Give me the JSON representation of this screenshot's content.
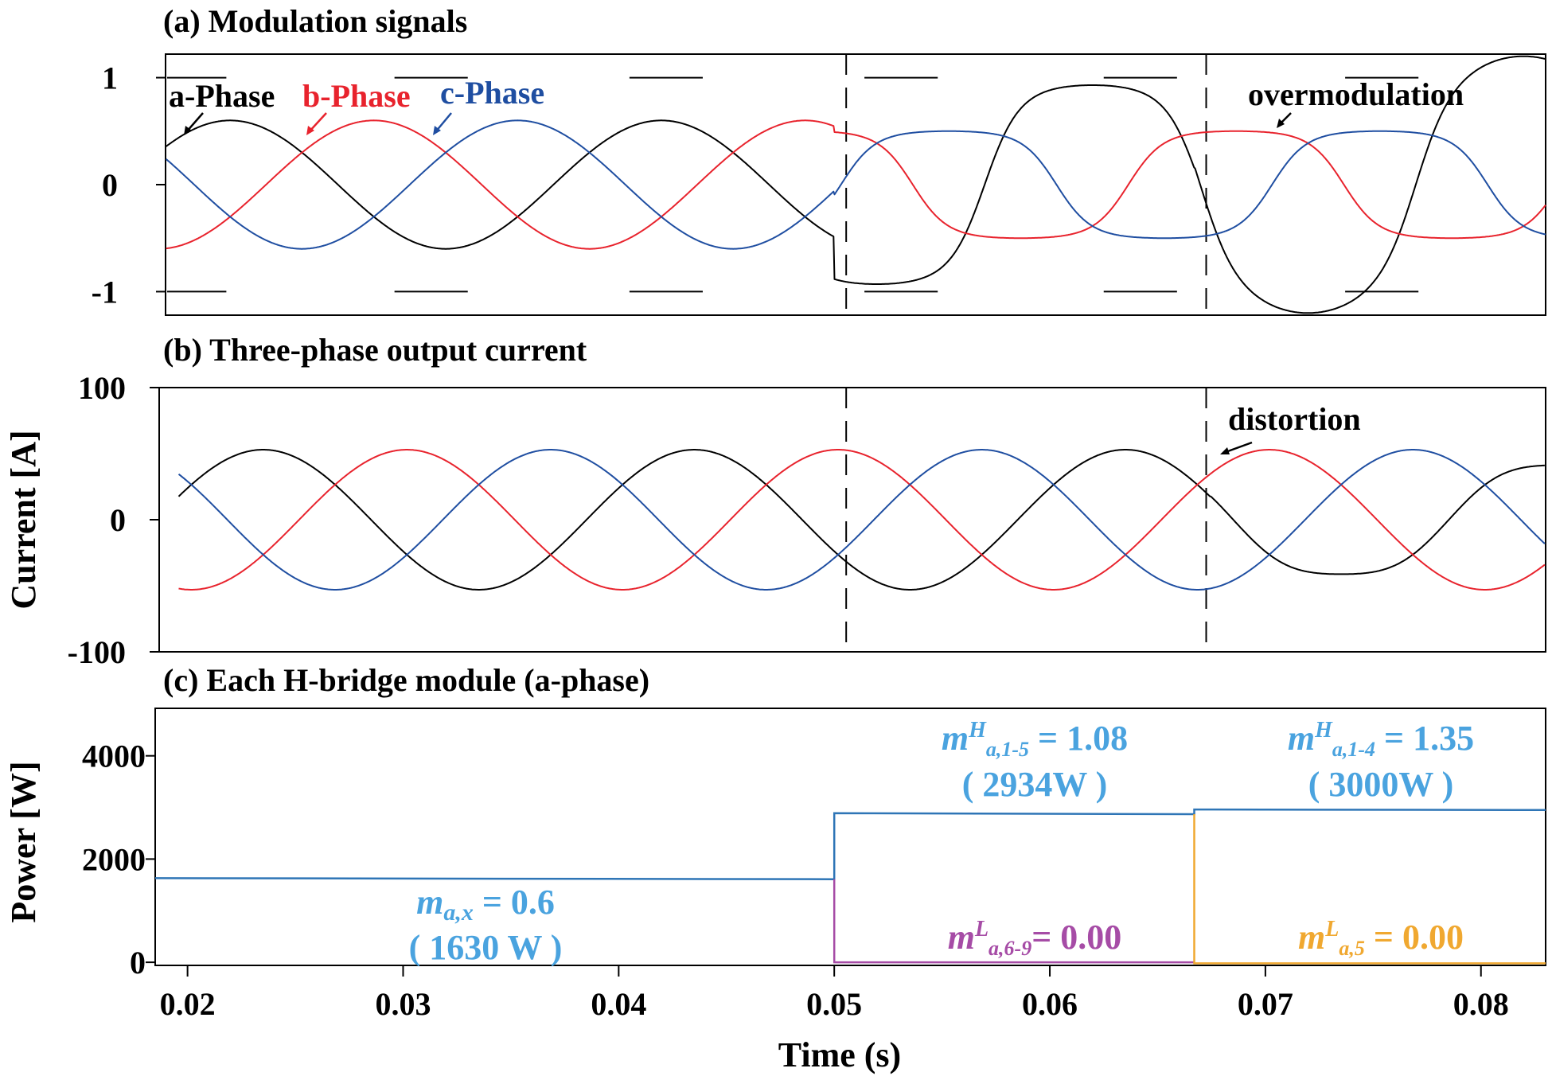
{
  "chart_data": [
    {
      "type": "line",
      "title": "(a) Modulation signals",
      "xlim": [
        0.0185,
        0.083
      ],
      "ylim": [
        -1.22,
        1.22
      ],
      "yticks": [
        1,
        0,
        -1
      ],
      "ytick_labels": [
        "1",
        "0",
        "-1"
      ],
      "carrier_levels": [
        1,
        -1
      ],
      "event_times": [
        0.05,
        0.0667
      ],
      "series": [
        {
          "name": "a-Phase",
          "color": "#000000"
        },
        {
          "name": "b-Phase",
          "color": "#e8232d"
        },
        {
          "name": "c-Phase",
          "color": "#1f4ea1"
        }
      ],
      "amplitudes": [
        0.6,
        0.93,
        1.2
      ],
      "annotations": [
        {
          "text": "overmodulation"
        }
      ]
    },
    {
      "type": "line",
      "title": "(b) Three-phase output current",
      "ylabel": "Current [A]",
      "xlim": [
        0.0185,
        0.083
      ],
      "ylim": [
        -100,
        100
      ],
      "yticks": [
        100,
        0,
        -100
      ],
      "ytick_labels": [
        "100",
        "0",
        "-100"
      ],
      "amplitude": 53,
      "event_times": [
        0.05,
        0.0667
      ],
      "series": [
        {
          "name": "a-Phase",
          "color": "#000000"
        },
        {
          "name": "b-Phase",
          "color": "#e8232d"
        },
        {
          "name": "c-Phase",
          "color": "#1f4ea1"
        }
      ],
      "annotations": [
        {
          "text": "distortion"
        }
      ]
    },
    {
      "type": "line",
      "title": "(c) Each H-bridge module (a-phase)",
      "ylabel": "Power [W]",
      "xlabel": "Time (s)",
      "xlim": [
        0.0185,
        0.083
      ],
      "ylim": [
        -60,
        4920
      ],
      "xticks": [
        0.02,
        0.03,
        0.04,
        0.05,
        0.06,
        0.07,
        0.08
      ],
      "xtick_labels": [
        "0.02",
        "0.03",
        "0.04",
        "0.05",
        "0.06",
        "0.07",
        "0.08"
      ],
      "yticks": [
        4000,
        2000,
        0
      ],
      "ytick_labels": [
        "4000",
        "2000",
        "0"
      ],
      "series": [
        {
          "color": "#2e75b6",
          "points": [
            [
              0.0185,
              1630
            ],
            [
              0.05,
              1610
            ],
            [
              0.05,
              2890
            ],
            [
              0.0667,
              2870
            ],
            [
              0.0667,
              2960
            ],
            [
              0.083,
              2950
            ]
          ]
        },
        {
          "color": "#a64ca6",
          "points": [
            [
              0.05,
              1610
            ],
            [
              0.05,
              0
            ],
            [
              0.0667,
              0
            ]
          ]
        },
        {
          "color": "#f0a830",
          "points": [
            [
              0.0667,
              2870
            ],
            [
              0.0667,
              -20
            ],
            [
              0.083,
              -20
            ]
          ]
        }
      ],
      "annotations": [
        {
          "base": "m",
          "sub": "a,x",
          "rest": " = 0.6",
          "line2": "( 1630 W )",
          "color": "#4aa3df"
        },
        {
          "base": "m",
          "sup": "H",
          "sub": "a,1-5",
          "rest": " = 1.08",
          "line2": "( 2934W )",
          "color": "#4aa3df"
        },
        {
          "base": "m",
          "sup": "H",
          "sub": "a,1-4",
          "rest": " = 1.35",
          "line2": "( 3000W )",
          "color": "#4aa3df"
        },
        {
          "base": "m",
          "sup": "L",
          "sub": "a,6-9",
          "rest": "= 0.00",
          "color": "#a64ca6"
        },
        {
          "base": "m",
          "sup": "L",
          "sub": "a,5",
          "rest": " = 0.00",
          "color": "#f0a830"
        }
      ]
    }
  ]
}
